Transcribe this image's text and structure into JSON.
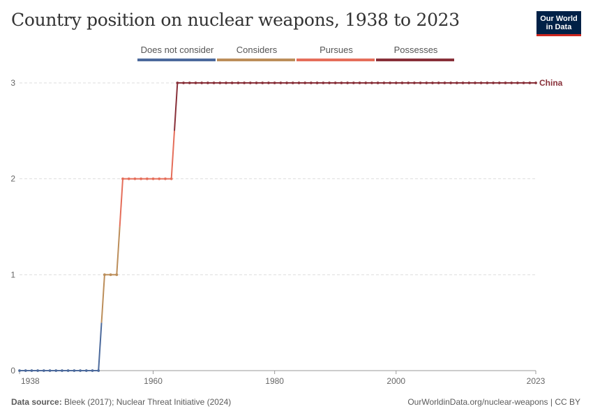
{
  "header": {
    "title": "Country position on nuclear weapons, 1938 to 2023",
    "logo_line1": "Our World",
    "logo_line2": "in Data"
  },
  "legend": {
    "items": [
      {
        "label": "Does not consider",
        "color": "#4c6a9c"
      },
      {
        "label": "Considers",
        "color": "#bc8e5a"
      },
      {
        "label": "Pursues",
        "color": "#e56e5a"
      },
      {
        "label": "Possesses",
        "color": "#883039"
      }
    ]
  },
  "footer": {
    "source_label": "Data source:",
    "source_text": "Bleek (2017); Nuclear Threat Initiative (2024)",
    "right_text": "OurWorldinData.org/nuclear-weapons | CC BY"
  },
  "chart_data": {
    "type": "line",
    "title": "Country position on nuclear weapons, 1938 to 2023",
    "xlabel": "",
    "ylabel": "",
    "xlim": [
      1938,
      2023
    ],
    "ylim": [
      0,
      3
    ],
    "x_ticks": [
      1938,
      1960,
      1980,
      2000,
      2023
    ],
    "y_ticks": [
      0,
      1,
      2,
      3
    ],
    "grid": "horizontal dashed",
    "legend_position": "top",
    "series": [
      {
        "name": "China",
        "color": "#883039",
        "x_start": 1938,
        "x_end": 2023,
        "values": [
          0,
          0,
          0,
          0,
          0,
          0,
          0,
          0,
          0,
          0,
          0,
          0,
          0,
          0,
          1,
          1,
          1,
          2,
          2,
          2,
          2,
          2,
          2,
          2,
          2,
          2,
          3,
          3,
          3,
          3,
          3,
          3,
          3,
          3,
          3,
          3,
          3,
          3,
          3,
          3,
          3,
          3,
          3,
          3,
          3,
          3,
          3,
          3,
          3,
          3,
          3,
          3,
          3,
          3,
          3,
          3,
          3,
          3,
          3,
          3,
          3,
          3,
          3,
          3,
          3,
          3,
          3,
          3,
          3,
          3,
          3,
          3,
          3,
          3,
          3,
          3,
          3,
          3,
          3,
          3,
          3,
          3,
          3,
          3,
          3,
          3
        ]
      }
    ],
    "level_colors": [
      "#4c6a9c",
      "#bc8e5a",
      "#e56e5a",
      "#883039"
    ]
  }
}
